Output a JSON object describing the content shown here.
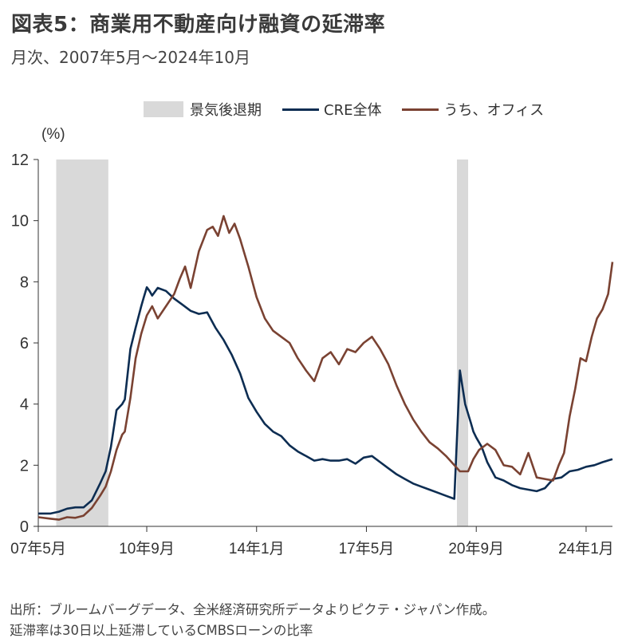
{
  "title": "図表5：商業用不動産向け融資の延滞率",
  "subtitle": "月次、2007年5月～2024年10月",
  "source_lines": [
    "出所：ブルームバーグデータ、全米経済研究所データよりピクテ・ジャパン作成。",
    "延滞率は30日以上延滞しているCMBSローンの比率"
  ],
  "colors": {
    "recession": "#d9d9d9",
    "cre_total": "#0d2d52",
    "office": "#7a4232"
  },
  "chart_data": {
    "type": "line",
    "ylabel": "(%)",
    "ylim": [
      0,
      12
    ],
    "yticks": [
      0,
      2,
      4,
      6,
      8,
      10,
      12
    ],
    "xlim": [
      2007.375,
      2024.8
    ],
    "xticks": [
      {
        "x": 2007.375,
        "label": "07年5月"
      },
      {
        "x": 2010.667,
        "label": "10年9月"
      },
      {
        "x": 2014.0,
        "label": "14年1月"
      },
      {
        "x": 2017.333,
        "label": "17年5月"
      },
      {
        "x": 2020.667,
        "label": "20年9月"
      },
      {
        "x": 2024.0,
        "label": "24年1月"
      }
    ],
    "legend": [
      "景気後退期",
      "CRE全体",
      "うち、オフィス"
    ],
    "legend_position": "top",
    "recessions": [
      [
        2007.92,
        2009.5
      ],
      [
        2020.08,
        2020.42
      ]
    ],
    "series": [
      {
        "name": "CRE全体",
        "x": [
          2007.375,
          2007.75,
          2008.0,
          2008.25,
          2008.5,
          2008.75,
          2009.0,
          2009.25,
          2009.42,
          2009.58,
          2009.75,
          2009.92,
          2010.0,
          2010.17,
          2010.33,
          2010.5,
          2010.58,
          2010.67,
          2010.75,
          2010.83,
          2011.0,
          2011.25,
          2011.5,
          2011.75,
          2012.0,
          2012.25,
          2012.5,
          2012.75,
          2013.0,
          2013.25,
          2013.5,
          2013.75,
          2014.0,
          2014.25,
          2014.5,
          2014.75,
          2015.0,
          2015.25,
          2015.5,
          2015.75,
          2016.0,
          2016.25,
          2016.5,
          2016.75,
          2017.0,
          2017.25,
          2017.5,
          2017.75,
          2018.0,
          2018.25,
          2018.5,
          2018.75,
          2019.0,
          2019.25,
          2019.5,
          2019.75,
          2020.0,
          2020.17,
          2020.33,
          2020.5,
          2020.58,
          2020.67,
          2020.83,
          2021.0,
          2021.25,
          2021.5,
          2021.75,
          2022.0,
          2022.25,
          2022.5,
          2022.75,
          2023.0,
          2023.25,
          2023.5,
          2023.75,
          2024.0,
          2024.25,
          2024.5,
          2024.8
        ],
        "values": [
          0.42,
          0.42,
          0.48,
          0.58,
          0.62,
          0.62,
          0.85,
          1.4,
          1.8,
          2.6,
          3.8,
          4.0,
          4.15,
          5.8,
          6.5,
          7.2,
          7.5,
          7.82,
          7.7,
          7.55,
          7.8,
          7.7,
          7.45,
          7.25,
          7.05,
          6.95,
          7.0,
          6.5,
          6.1,
          5.6,
          5.0,
          4.2,
          3.75,
          3.35,
          3.1,
          2.95,
          2.65,
          2.45,
          2.3,
          2.15,
          2.2,
          2.15,
          2.15,
          2.2,
          2.05,
          2.25,
          2.3,
          2.1,
          1.9,
          1.7,
          1.55,
          1.4,
          1.3,
          1.2,
          1.1,
          1.0,
          0.9,
          5.1,
          4.0,
          3.4,
          3.1,
          2.9,
          2.6,
          2.1,
          1.6,
          1.5,
          1.35,
          1.25,
          1.2,
          1.15,
          1.25,
          1.55,
          1.6,
          1.8,
          1.85,
          1.95,
          2.0,
          2.1,
          2.2
        ]
      },
      {
        "name": "うち、オフィス",
        "x": [
          2007.375,
          2007.75,
          2008.0,
          2008.25,
          2008.5,
          2008.75,
          2009.0,
          2009.25,
          2009.42,
          2009.58,
          2009.75,
          2009.92,
          2010.0,
          2010.17,
          2010.33,
          2010.5,
          2010.67,
          2010.83,
          2011.0,
          2011.25,
          2011.5,
          2011.67,
          2011.83,
          2012.0,
          2012.25,
          2012.5,
          2012.67,
          2012.83,
          2013.0,
          2013.17,
          2013.33,
          2013.5,
          2013.75,
          2014.0,
          2014.25,
          2014.5,
          2014.75,
          2015.0,
          2015.25,
          2015.5,
          2015.75,
          2016.0,
          2016.25,
          2016.5,
          2016.75,
          2017.0,
          2017.25,
          2017.5,
          2017.75,
          2018.0,
          2018.25,
          2018.5,
          2018.75,
          2019.0,
          2019.25,
          2019.5,
          2019.75,
          2020.0,
          2020.17,
          2020.42,
          2020.58,
          2020.75,
          2021.0,
          2021.25,
          2021.5,
          2021.75,
          2022.0,
          2022.25,
          2022.5,
          2022.75,
          2023.0,
          2023.17,
          2023.33,
          2023.5,
          2023.67,
          2023.83,
          2024.0,
          2024.17,
          2024.33,
          2024.5,
          2024.67,
          2024.8
        ],
        "values": [
          0.3,
          0.25,
          0.22,
          0.3,
          0.28,
          0.35,
          0.6,
          1.0,
          1.3,
          1.8,
          2.5,
          3.0,
          3.1,
          4.2,
          5.5,
          6.3,
          6.9,
          7.2,
          6.8,
          7.2,
          7.6,
          8.1,
          8.5,
          7.8,
          9.0,
          9.7,
          9.8,
          9.5,
          10.15,
          9.6,
          9.9,
          9.4,
          8.5,
          7.5,
          6.8,
          6.4,
          6.2,
          6.0,
          5.5,
          5.1,
          4.75,
          5.5,
          5.7,
          5.3,
          5.8,
          5.7,
          6.0,
          6.2,
          5.8,
          5.3,
          4.6,
          4.0,
          3.5,
          3.1,
          2.75,
          2.55,
          2.3,
          2.0,
          1.8,
          1.8,
          2.2,
          2.5,
          2.7,
          2.5,
          2.0,
          1.95,
          1.7,
          2.4,
          1.6,
          1.55,
          1.5,
          2.0,
          2.4,
          3.6,
          4.5,
          5.5,
          5.4,
          6.2,
          6.8,
          7.1,
          7.6,
          8.65
        ]
      }
    ]
  }
}
